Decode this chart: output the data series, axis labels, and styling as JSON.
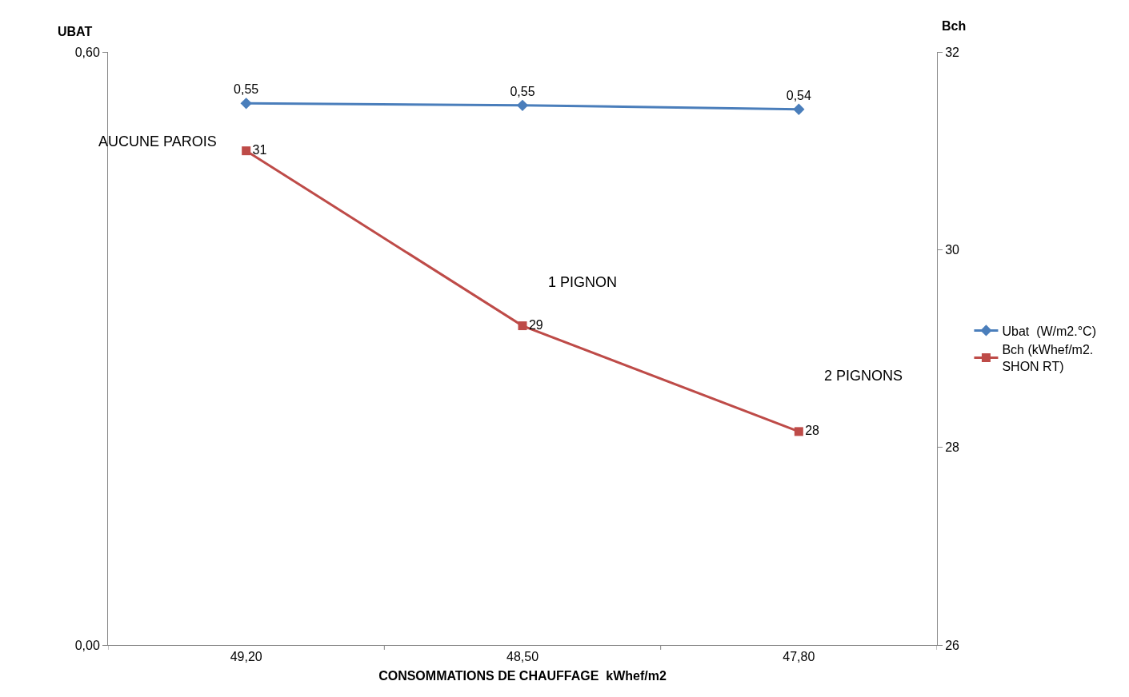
{
  "chart_data": {
    "type": "line",
    "xlabel": "CONSOMMATIONS DE CHAUFFAGE  kWhef/m2",
    "ylabel": "UBAT",
    "y2label": "Bch",
    "categories": [
      "49,20",
      "48,50",
      "47,80"
    ],
    "series": [
      {
        "name": "Ubat  (W/m2.°C)",
        "color": "#4a7ebb",
        "marker": "diamond",
        "values": [
          0.548,
          0.546,
          0.542
        ],
        "value_labels": [
          "0,55",
          "0,55",
          "0,54"
        ]
      },
      {
        "name": "Bch (kWhef/m2. SHON RT)",
        "color": "#be4b48",
        "marker": "square",
        "axis": "y2",
        "values": [
          31.0,
          29.23,
          28.16
        ],
        "value_labels": [
          "31",
          "29",
          "28"
        ]
      }
    ],
    "ylim": [
      0,
      0.6
    ],
    "yticks": [
      {
        "value": 0,
        "label": "0,00"
      },
      {
        "value": 0.6,
        "label": "0,60"
      }
    ],
    "y2lim": [
      26,
      32
    ],
    "y2ticks": [
      26,
      28,
      30,
      32
    ],
    "annotations": [
      "AUCUNE PAROIS",
      "1 PIGNON",
      "2 PIGNONS"
    ],
    "legend": "right",
    "line_style": "solid"
  }
}
